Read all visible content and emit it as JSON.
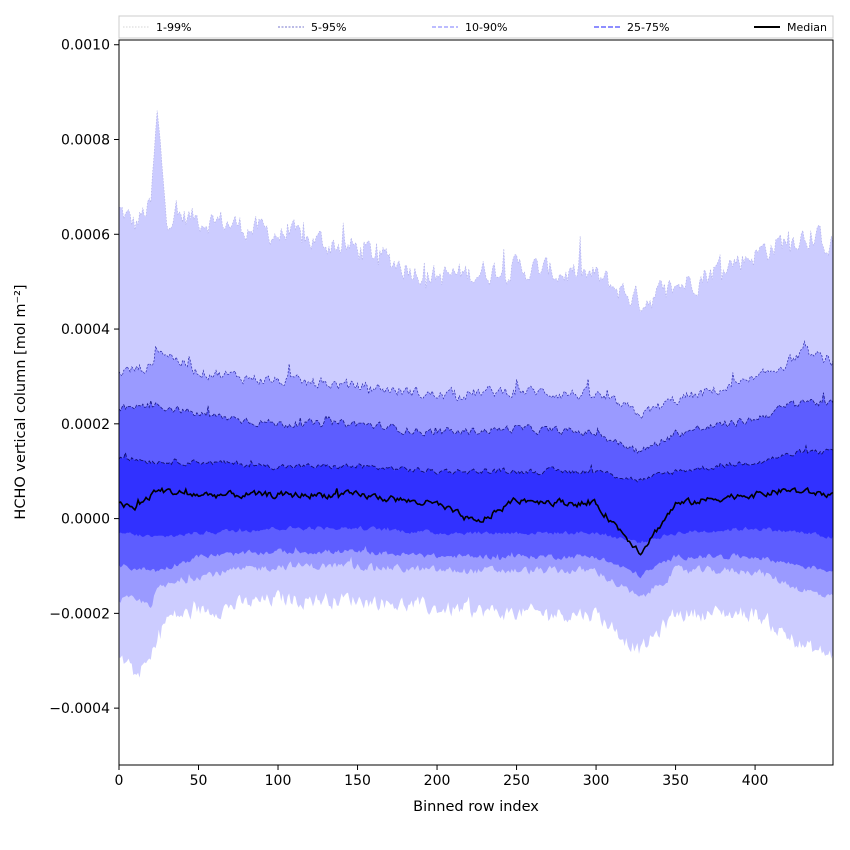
{
  "chart_data": {
    "type": "area",
    "xlabel": "Binned row index",
    "ylabel": "HCHO vertical column [mol m⁻²]",
    "xlim": [
      0,
      449
    ],
    "ylim": [
      -0.00052,
      0.00101
    ],
    "x_ticks": [
      "0",
      "50",
      "100",
      "150",
      "200",
      "250",
      "300",
      "350",
      "400"
    ],
    "y_ticks": [
      "−0.0004",
      "−0.0002",
      "0.0000",
      "0.0002",
      "0.0004",
      "0.0006",
      "0.0008",
      "0.0010"
    ],
    "legend_position": "top (full width)",
    "legend": [
      "1-99%",
      "5-95%",
      "10-90%",
      "25-75%",
      "Median"
    ],
    "series": [
      {
        "name": "1-99%",
        "band": "p01-p99",
        "control_x": [
          0,
          10,
          20,
          24,
          30,
          60,
          100,
          150,
          200,
          250,
          300,
          328,
          350,
          400,
          430,
          449
        ],
        "upper": [
          0.00065,
          0.00062,
          0.00066,
          0.00085,
          0.00064,
          0.00063,
          0.0006,
          0.00057,
          0.00051,
          0.00053,
          0.00051,
          0.00046,
          0.00049,
          0.00056,
          0.0006,
          0.00058
        ],
        "lower": [
          -0.00029,
          -0.00033,
          -0.0003,
          -0.00025,
          -0.00021,
          -0.00019,
          -0.00017,
          -0.00017,
          -0.00019,
          -0.0002,
          -0.0002,
          -0.00028,
          -0.0002,
          -0.0002,
          -0.00027,
          -0.00029
        ]
      },
      {
        "name": "5-95%",
        "band": "p05-p95",
        "control_x": [
          0,
          20,
          24,
          50,
          100,
          150,
          200,
          250,
          300,
          328,
          350,
          400,
          430,
          449
        ],
        "upper": [
          0.00031,
          0.00032,
          0.00036,
          0.00031,
          0.00029,
          0.00028,
          0.00026,
          0.00027,
          0.00026,
          0.00022,
          0.00025,
          0.00029,
          0.00035,
          0.00033
        ],
        "lower": [
          -0.00017,
          -0.00018,
          -0.00015,
          -0.00012,
          -0.0001,
          -0.0001,
          -0.00011,
          -0.00011,
          -0.00011,
          -0.00017,
          -0.00011,
          -0.00011,
          -0.00015,
          -0.00017
        ]
      },
      {
        "name": "10-90%",
        "band": "p10-p90",
        "control_x": [
          0,
          24,
          50,
          100,
          150,
          200,
          250,
          300,
          328,
          350,
          400,
          430,
          449
        ],
        "upper": [
          0.00023,
          0.00024,
          0.00022,
          0.0002,
          0.0002,
          0.00018,
          0.00019,
          0.00018,
          0.00014,
          0.00018,
          0.00021,
          0.00025,
          0.00024
        ],
        "lower": [
          -0.0001,
          -0.00011,
          -8e-05,
          -7e-05,
          -7e-05,
          -8e-05,
          -8e-05,
          -8e-05,
          -0.00012,
          -8e-05,
          -8e-05,
          -0.0001,
          -0.00011
        ]
      },
      {
        "name": "25-75%",
        "band": "p25-p75",
        "control_x": [
          0,
          24,
          50,
          100,
          150,
          200,
          250,
          300,
          328,
          350,
          400,
          430,
          449
        ],
        "upper": [
          0.00013,
          0.00012,
          0.00012,
          0.00011,
          0.00011,
          0.0001,
          0.0001,
          0.0001,
          8e-05,
          0.0001,
          0.00012,
          0.00014,
          0.00014
        ],
        "lower": [
          -3e-05,
          -4e-05,
          -3e-05,
          -2e-05,
          -2e-05,
          -3e-05,
          -3e-05,
          -3e-05,
          -5e-05,
          -3e-05,
          -2e-05,
          -3e-05,
          -4e-05
        ]
      },
      {
        "name": "Median",
        "control_x": [
          0,
          10,
          24,
          50,
          100,
          150,
          200,
          225,
          250,
          300,
          328,
          350,
          392,
          400,
          420,
          449
        ],
        "values": [
          3e-05,
          2e-05,
          6e-05,
          5e-05,
          5e-05,
          5e-05,
          3e-05,
          -1e-05,
          4e-05,
          3e-05,
          -7e-05,
          3e-05,
          5e-05,
          5e-05,
          6e-05,
          5e-05
        ]
      }
    ],
    "colors": {
      "band_1_99": "#ccccff",
      "band_5_95": "#9a9aff",
      "band_10_90": "#5d5dff",
      "band_25_75": "#3131ff",
      "line_1_99": "#b0b0e8",
      "line_5_95": "#2a2aa8",
      "line_10_90": "#1a1a88",
      "line_25_75": "#0f0f70",
      "median": "#000000"
    },
    "grid": false
  }
}
